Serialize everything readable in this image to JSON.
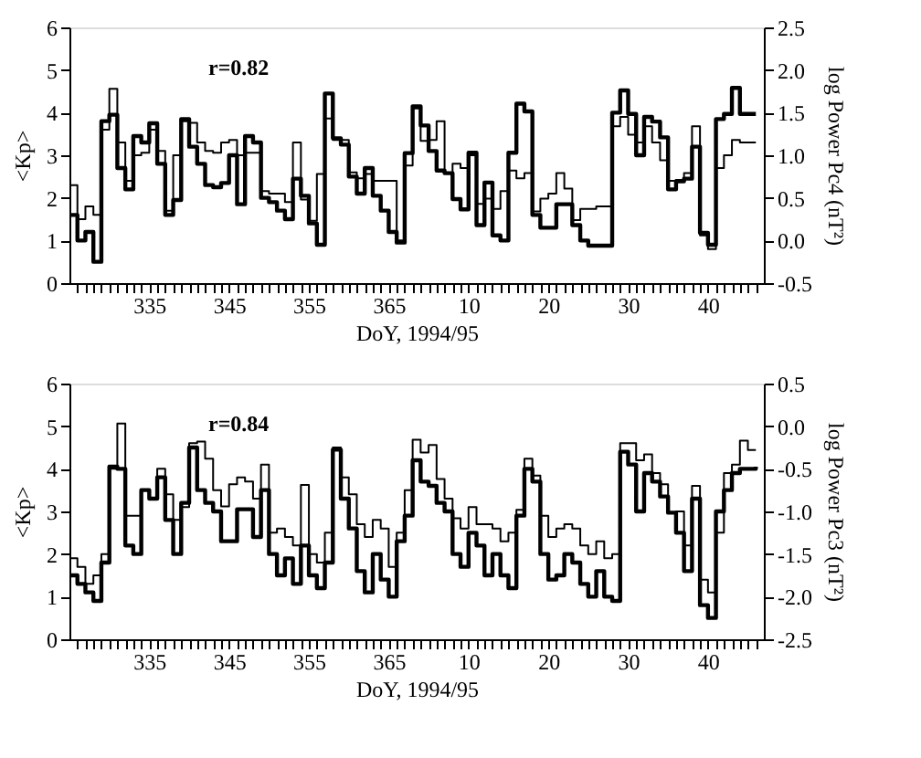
{
  "chart_data": [
    {
      "type": "step",
      "xlabel": "DoY, 1994/95",
      "ylabel": "<Kp>",
      "y2label": "log Power Pc4 (nT²)",
      "annotations": [
        "r=0.82"
      ],
      "grid": false,
      "x": [
        "1994-11-21",
        "1994-11-22",
        "1994-11-23",
        "1994-11-24",
        "1994-11-25",
        "1994-11-26",
        "1994-11-27",
        "1994-11-28",
        "1994-11-29",
        "1994-11-30",
        "1994-12-01",
        "1994-12-02",
        "1994-12-03",
        "1994-12-04",
        "1994-12-05",
        "1994-12-06",
        "1994-12-07",
        "1994-12-08",
        "1994-12-09",
        "1994-12-10",
        "1994-12-11",
        "1994-12-12",
        "1994-12-13",
        "1994-12-14",
        "1994-12-15",
        "1994-12-16",
        "1994-12-17",
        "1994-12-18",
        "1994-12-19",
        "1994-12-20",
        "1994-12-21",
        "1994-12-22",
        "1994-12-23",
        "1994-12-24",
        "1994-12-25",
        "1994-12-26",
        "1994-12-27",
        "1994-12-28",
        "1994-12-29",
        "1994-12-30",
        "1994-12-31",
        "1995-01-01",
        "1995-01-02",
        "1995-01-03",
        "1995-01-04",
        "1995-01-05",
        "1995-01-06",
        "1995-01-07",
        "1995-01-08",
        "1995-01-09",
        "1995-01-10",
        "1995-01-11",
        "1995-01-12",
        "1995-01-13",
        "1995-01-14",
        "1995-01-15",
        "1995-01-16",
        "1995-01-17",
        "1995-01-18",
        "1995-01-19",
        "1995-01-20",
        "1995-01-21",
        "1995-01-22",
        "1995-01-23",
        "1995-01-24",
        "1995-01-25",
        "1995-01-26",
        "1995-01-27",
        "1995-01-28",
        "1995-01-29",
        "1995-01-30",
        "1995-01-31",
        "1995-02-01",
        "1995-02-02",
        "1995-02-03",
        "1995-02-04",
        "1995-02-05",
        "1995-02-06",
        "1995-02-07",
        "1995-02-08",
        "1995-02-09",
        "1995-02-10",
        "1995-02-11",
        "1995-02-12",
        "1995-02-13",
        "1995-02-14",
        "1995-02-15"
      ],
      "xlim": [
        "1994-11-21",
        "1995-02-16"
      ],
      "xticks": [
        {
          "value": "1994-11-22",
          "label": null
        },
        {
          "value": "1994-11-23",
          "label": null
        },
        {
          "value": "1994-11-24",
          "label": null
        },
        {
          "value": "1994-11-25",
          "label": null
        },
        {
          "value": "1994-11-26",
          "label": null
        },
        {
          "value": "1994-11-27",
          "label": null
        },
        {
          "value": "1994-11-28",
          "label": null
        },
        {
          "value": "1994-11-29",
          "label": null
        },
        {
          "value": "1994-11-30",
          "label": null
        },
        {
          "value": "1994-12-01",
          "label": "335"
        },
        {
          "value": "1994-12-02",
          "label": null
        },
        {
          "value": "1994-12-03",
          "label": null
        },
        {
          "value": "1994-12-04",
          "label": null
        },
        {
          "value": "1994-12-05",
          "label": null
        },
        {
          "value": "1994-12-06",
          "label": null
        },
        {
          "value": "1994-12-07",
          "label": null
        },
        {
          "value": "1994-12-08",
          "label": null
        },
        {
          "value": "1994-12-09",
          "label": null
        },
        {
          "value": "1994-12-10",
          "label": null
        },
        {
          "value": "1994-12-11",
          "label": "345"
        },
        {
          "value": "1994-12-12",
          "label": null
        },
        {
          "value": "1994-12-13",
          "label": null
        },
        {
          "value": "1994-12-14",
          "label": null
        },
        {
          "value": "1994-12-15",
          "label": null
        },
        {
          "value": "1994-12-16",
          "label": null
        },
        {
          "value": "1994-12-17",
          "label": null
        },
        {
          "value": "1994-12-18",
          "label": null
        },
        {
          "value": "1994-12-19",
          "label": null
        },
        {
          "value": "1994-12-20",
          "label": null
        },
        {
          "value": "1994-12-21",
          "label": "355"
        },
        {
          "value": "1994-12-22",
          "label": null
        },
        {
          "value": "1994-12-23",
          "label": null
        },
        {
          "value": "1994-12-24",
          "label": null
        },
        {
          "value": "1994-12-25",
          "label": null
        },
        {
          "value": "1994-12-26",
          "label": null
        },
        {
          "value": "1994-12-27",
          "label": null
        },
        {
          "value": "1994-12-28",
          "label": null
        },
        {
          "value": "1994-12-29",
          "label": null
        },
        {
          "value": "1994-12-30",
          "label": null
        },
        {
          "value": "1994-12-31",
          "label": "365"
        },
        {
          "value": "1995-01-01",
          "label": null
        },
        {
          "value": "1995-01-02",
          "label": null
        },
        {
          "value": "1995-01-03",
          "label": null
        },
        {
          "value": "1995-01-04",
          "label": null
        },
        {
          "value": "1995-01-05",
          "label": null
        },
        {
          "value": "1995-01-06",
          "label": null
        },
        {
          "value": "1995-01-07",
          "label": null
        },
        {
          "value": "1995-01-08",
          "label": null
        },
        {
          "value": "1995-01-09",
          "label": null
        },
        {
          "value": "1995-01-10",
          "label": "10"
        },
        {
          "value": "1995-01-11",
          "label": null
        },
        {
          "value": "1995-01-12",
          "label": null
        },
        {
          "value": "1995-01-13",
          "label": null
        },
        {
          "value": "1995-01-14",
          "label": null
        },
        {
          "value": "1995-01-15",
          "label": null
        },
        {
          "value": "1995-01-16",
          "label": null
        },
        {
          "value": "1995-01-17",
          "label": null
        },
        {
          "value": "1995-01-18",
          "label": null
        },
        {
          "value": "1995-01-19",
          "label": null
        },
        {
          "value": "1995-01-20",
          "label": "20"
        },
        {
          "value": "1995-01-21",
          "label": null
        },
        {
          "value": "1995-01-22",
          "label": null
        },
        {
          "value": "1995-01-23",
          "label": null
        },
        {
          "value": "1995-01-24",
          "label": null
        },
        {
          "value": "1995-01-25",
          "label": null
        },
        {
          "value": "1995-01-26",
          "label": null
        },
        {
          "value": "1995-01-27",
          "label": null
        },
        {
          "value": "1995-01-28",
          "label": null
        },
        {
          "value": "1995-01-29",
          "label": null
        },
        {
          "value": "1995-01-30",
          "label": "30"
        },
        {
          "value": "1995-01-31",
          "label": null
        },
        {
          "value": "1995-02-01",
          "label": null
        },
        {
          "value": "1995-02-02",
          "label": null
        },
        {
          "value": "1995-02-03",
          "label": null
        },
        {
          "value": "1995-02-04",
          "label": null
        },
        {
          "value": "1995-02-05",
          "label": null
        },
        {
          "value": "1995-02-06",
          "label": null
        },
        {
          "value": "1995-02-07",
          "label": null
        },
        {
          "value": "1995-02-08",
          "label": null
        },
        {
          "value": "1995-02-09",
          "label": "40"
        },
        {
          "value": "1995-02-10",
          "label": null
        },
        {
          "value": "1995-02-11",
          "label": null
        },
        {
          "value": "1995-02-12",
          "label": null
        },
        {
          "value": "1995-02-13",
          "label": null
        },
        {
          "value": "1995-02-14",
          "label": null
        },
        {
          "value": "1995-02-15",
          "label": null
        }
      ],
      "ylim": [
        0,
        6
      ],
      "yticks": [
        0,
        1,
        2,
        3,
        4,
        5,
        6
      ],
      "y2lim": [
        -0.5,
        2.5
      ],
      "y2ticks": [
        {
          "value": -0.5,
          "label": "-0.5"
        },
        {
          "value": 0,
          "label": "0.0"
        },
        {
          "value": 0.5,
          "label": "0.5"
        },
        {
          "value": 1,
          "label": "1.0"
        },
        {
          "value": 1.5,
          "label": "1.5"
        },
        {
          "value": 2,
          "label": "2.0"
        },
        {
          "value": 2.5,
          "label": "2.5"
        }
      ],
      "series": [
        {
          "color": "#000000",
          "values": [
            1.6,
            1.0,
            1.2,
            0.5,
            3.8,
            3.95,
            2.7,
            2.2,
            3.45,
            3.3,
            3.75,
            2.8,
            1.6,
            1.95,
            3.85,
            3.2,
            2.8,
            2.3,
            2.25,
            2.35,
            3.0,
            1.85,
            3.45,
            3.3,
            2.0,
            1.9,
            1.7,
            1.5,
            2.45,
            2.05,
            1.4,
            0.9,
            4.45,
            3.4,
            3.25,
            2.5,
            2.1,
            2.7,
            2.05,
            1.7,
            1.2,
            0.95,
            3.05,
            4.15,
            3.7,
            3.1,
            2.64,
            2.58,
            1.97,
            1.73,
            3.06,
            1.36,
            2.36,
            1.12,
            1.0,
            3.06,
            4.21,
            4.03,
            1.6,
            1.3,
            1.3,
            1.85,
            1.85,
            1.36,
            1.0,
            0.88,
            0.88,
            0.88,
            4.0,
            4.52,
            3.97,
            3.0,
            3.9,
            3.79,
            3.42,
            2.2,
            2.39,
            2.45,
            3.2,
            1.18,
            0.9,
            3.85,
            3.97,
            4.58,
            3.97,
            3.97,
            3.97
          ]
        },
        {
          "color": "#000000",
          "axis": "y2",
          "values": [
            0.65,
            0.25,
            0.4,
            0.3,
            1.3,
            1.78,
            1.15,
            0.7,
            1.0,
            1.03,
            1.3,
            1.05,
            0.35,
            1.0,
            1.4,
            1.38,
            1.15,
            1.05,
            1.03,
            1.15,
            1.18,
            1.0,
            1.03,
            1.03,
            0.58,
            0.55,
            0.55,
            0.45,
            1.15,
            0.48,
            0.23,
            0.78,
            1.43,
            1.18,
            1.18,
            0.8,
            0.73,
            0.78,
            0.7,
            0.7,
            0.7,
            0.0,
            0.88,
            1.55,
            1.17,
            1.18,
            1.4,
            0.79,
            0.9,
            0.85,
            1.0,
            0.43,
            0.49,
            0.37,
            0.58,
            0.82,
            0.73,
            0.79,
            0.34,
            0.49,
            0.55,
            0.79,
            0.61,
            0.24,
            0.37,
            0.37,
            0.4,
            0.4,
            1.34,
            1.45,
            1.24,
            1.15,
            1.34,
            1.15,
            0.94,
            0.7,
            0.71,
            0.79,
            1.34,
            0.06,
            -0.1,
            0.85,
            1.0,
            1.18,
            1.15,
            1.15,
            1.15
          ]
        }
      ]
    },
    {
      "type": "step",
      "xlabel": "DoY, 1994/95",
      "ylabel": "<Kp>",
      "y2label": "log Power Pc3 (nT²)",
      "annotations": [
        "r=0.84"
      ],
      "grid": false,
      "x": [
        "1994-11-21",
        "1994-11-22",
        "1994-11-23",
        "1994-11-24",
        "1994-11-25",
        "1994-11-26",
        "1994-11-27",
        "1994-11-28",
        "1994-11-29",
        "1994-11-30",
        "1994-12-01",
        "1994-12-02",
        "1994-12-03",
        "1994-12-04",
        "1994-12-05",
        "1994-12-06",
        "1994-12-07",
        "1994-12-08",
        "1994-12-09",
        "1994-12-10",
        "1994-12-11",
        "1994-12-12",
        "1994-12-13",
        "1994-12-14",
        "1994-12-15",
        "1994-12-16",
        "1994-12-17",
        "1994-12-18",
        "1994-12-19",
        "1994-12-20",
        "1994-12-21",
        "1994-12-22",
        "1994-12-23",
        "1994-12-24",
        "1994-12-25",
        "1994-12-26",
        "1994-12-27",
        "1994-12-28",
        "1994-12-29",
        "1994-12-30",
        "1994-12-31",
        "1995-01-01",
        "1995-01-02",
        "1995-01-03",
        "1995-01-04",
        "1995-01-05",
        "1995-01-06",
        "1995-01-07",
        "1995-01-08",
        "1995-01-09",
        "1995-01-10",
        "1995-01-11",
        "1995-01-12",
        "1995-01-13",
        "1995-01-14",
        "1995-01-15",
        "1995-01-16",
        "1995-01-17",
        "1995-01-18",
        "1995-01-19",
        "1995-01-20",
        "1995-01-21",
        "1995-01-22",
        "1995-01-23",
        "1995-01-24",
        "1995-01-25",
        "1995-01-26",
        "1995-01-27",
        "1995-01-28",
        "1995-01-29",
        "1995-01-30",
        "1995-01-31",
        "1995-02-01",
        "1995-02-02",
        "1995-02-03",
        "1995-02-04",
        "1995-02-05",
        "1995-02-06",
        "1995-02-07",
        "1995-02-08",
        "1995-02-09",
        "1995-02-10",
        "1995-02-11",
        "1995-02-12",
        "1995-02-13",
        "1995-02-14",
        "1995-02-15"
      ],
      "xlim": [
        "1994-11-21",
        "1995-02-16"
      ],
      "xticks": [
        {
          "value": "1994-11-22",
          "label": null
        },
        {
          "value": "1994-11-23",
          "label": null
        },
        {
          "value": "1994-11-24",
          "label": null
        },
        {
          "value": "1994-11-25",
          "label": null
        },
        {
          "value": "1994-11-26",
          "label": null
        },
        {
          "value": "1994-11-27",
          "label": null
        },
        {
          "value": "1994-11-28",
          "label": null
        },
        {
          "value": "1994-11-29",
          "label": null
        },
        {
          "value": "1994-11-30",
          "label": null
        },
        {
          "value": "1994-12-01",
          "label": "335"
        },
        {
          "value": "1994-12-02",
          "label": null
        },
        {
          "value": "1994-12-03",
          "label": null
        },
        {
          "value": "1994-12-04",
          "label": null
        },
        {
          "value": "1994-12-05",
          "label": null
        },
        {
          "value": "1994-12-06",
          "label": null
        },
        {
          "value": "1994-12-07",
          "label": null
        },
        {
          "value": "1994-12-08",
          "label": null
        },
        {
          "value": "1994-12-09",
          "label": null
        },
        {
          "value": "1994-12-10",
          "label": null
        },
        {
          "value": "1994-12-11",
          "label": "345"
        },
        {
          "value": "1994-12-12",
          "label": null
        },
        {
          "value": "1994-12-13",
          "label": null
        },
        {
          "value": "1994-12-14",
          "label": null
        },
        {
          "value": "1994-12-15",
          "label": null
        },
        {
          "value": "1994-12-16",
          "label": null
        },
        {
          "value": "1994-12-17",
          "label": null
        },
        {
          "value": "1994-12-18",
          "label": null
        },
        {
          "value": "1994-12-19",
          "label": null
        },
        {
          "value": "1994-12-20",
          "label": null
        },
        {
          "value": "1994-12-21",
          "label": "355"
        },
        {
          "value": "1994-12-22",
          "label": null
        },
        {
          "value": "1994-12-23",
          "label": null
        },
        {
          "value": "1994-12-24",
          "label": null
        },
        {
          "value": "1994-12-25",
          "label": null
        },
        {
          "value": "1994-12-26",
          "label": null
        },
        {
          "value": "1994-12-27",
          "label": null
        },
        {
          "value": "1994-12-28",
          "label": null
        },
        {
          "value": "1994-12-29",
          "label": null
        },
        {
          "value": "1994-12-30",
          "label": null
        },
        {
          "value": "1994-12-31",
          "label": "365"
        },
        {
          "value": "1995-01-01",
          "label": null
        },
        {
          "value": "1995-01-02",
          "label": null
        },
        {
          "value": "1995-01-03",
          "label": null
        },
        {
          "value": "1995-01-04",
          "label": null
        },
        {
          "value": "1995-01-05",
          "label": null
        },
        {
          "value": "1995-01-06",
          "label": null
        },
        {
          "value": "1995-01-07",
          "label": null
        },
        {
          "value": "1995-01-08",
          "label": null
        },
        {
          "value": "1995-01-09",
          "label": null
        },
        {
          "value": "1995-01-10",
          "label": "10"
        },
        {
          "value": "1995-01-11",
          "label": null
        },
        {
          "value": "1995-01-12",
          "label": null
        },
        {
          "value": "1995-01-13",
          "label": null
        },
        {
          "value": "1995-01-14",
          "label": null
        },
        {
          "value": "1995-01-15",
          "label": null
        },
        {
          "value": "1995-01-16",
          "label": null
        },
        {
          "value": "1995-01-17",
          "label": null
        },
        {
          "value": "1995-01-18",
          "label": null
        },
        {
          "value": "1995-01-19",
          "label": null
        },
        {
          "value": "1995-01-20",
          "label": "20"
        },
        {
          "value": "1995-01-21",
          "label": null
        },
        {
          "value": "1995-01-22",
          "label": null
        },
        {
          "value": "1995-01-23",
          "label": null
        },
        {
          "value": "1995-01-24",
          "label": null
        },
        {
          "value": "1995-01-25",
          "label": null
        },
        {
          "value": "1995-01-26",
          "label": null
        },
        {
          "value": "1995-01-27",
          "label": null
        },
        {
          "value": "1995-01-28",
          "label": null
        },
        {
          "value": "1995-01-29",
          "label": null
        },
        {
          "value": "1995-01-30",
          "label": "30"
        },
        {
          "value": "1995-01-31",
          "label": null
        },
        {
          "value": "1995-02-01",
          "label": null
        },
        {
          "value": "1995-02-02",
          "label": null
        },
        {
          "value": "1995-02-03",
          "label": null
        },
        {
          "value": "1995-02-04",
          "label": null
        },
        {
          "value": "1995-02-05",
          "label": null
        },
        {
          "value": "1995-02-06",
          "label": null
        },
        {
          "value": "1995-02-07",
          "label": null
        },
        {
          "value": "1995-02-08",
          "label": null
        },
        {
          "value": "1995-02-09",
          "label": "40"
        },
        {
          "value": "1995-02-10",
          "label": null
        },
        {
          "value": "1995-02-11",
          "label": null
        },
        {
          "value": "1995-02-12",
          "label": null
        },
        {
          "value": "1995-02-13",
          "label": null
        },
        {
          "value": "1995-02-14",
          "label": null
        },
        {
          "value": "1995-02-15",
          "label": null
        }
      ],
      "ylim": [
        0,
        6
      ],
      "yticks": [
        0,
        1,
        2,
        3,
        4,
        5,
        6
      ],
      "y2lim": [
        -2.5,
        0.5
      ],
      "y2ticks": [
        {
          "value": -2.5,
          "label": "-2.5"
        },
        {
          "value": -2,
          "label": "-2.0"
        },
        {
          "value": -1.5,
          "label": "-1.5"
        },
        {
          "value": -1,
          "label": "-1.0"
        },
        {
          "value": -0.5,
          "label": "-0.5"
        },
        {
          "value": 0,
          "label": "0.0"
        },
        {
          "value": 0.5,
          "label": "0.5"
        }
      ],
      "series": [
        {
          "color": "#000000",
          "values": [
            1.5,
            1.3,
            1.1,
            0.9,
            1.8,
            4.05,
            4.0,
            2.2,
            2.0,
            3.5,
            3.3,
            3.8,
            2.8,
            2.0,
            3.2,
            4.5,
            3.5,
            3.2,
            3.0,
            2.3,
            2.3,
            3.05,
            3.05,
            2.4,
            3.5,
            2.0,
            1.5,
            1.9,
            1.3,
            2.2,
            1.5,
            1.2,
            1.8,
            4.45,
            3.3,
            2.6,
            1.6,
            1.1,
            2.0,
            1.4,
            1.0,
            2.3,
            2.9,
            4.2,
            3.7,
            3.6,
            3.2,
            3.0,
            2.0,
            1.7,
            2.5,
            2.2,
            1.5,
            2.0,
            1.5,
            1.2,
            2.9,
            4.0,
            3.7,
            2.0,
            1.4,
            1.5,
            2.0,
            1.8,
            1.3,
            1.0,
            1.6,
            1.0,
            0.9,
            4.4,
            4.1,
            3.0,
            3.9,
            3.7,
            3.35,
            2.97,
            2.5,
            1.6,
            3.3,
            0.8,
            0.5,
            3.0,
            3.5,
            3.9,
            4.0,
            4.0,
            4.05
          ]
        },
        {
          "color": "#000000",
          "axis": "y2",
          "values": [
            -1.55,
            -1.65,
            -1.85,
            -1.75,
            -1.5,
            -0.5,
            0.03,
            -1.05,
            -1.05,
            -0.75,
            -0.85,
            -0.5,
            -0.8,
            -1.1,
            -0.95,
            -0.2,
            -0.18,
            -0.38,
            -0.75,
            -0.94,
            -0.68,
            -0.6,
            -0.65,
            -0.85,
            -0.45,
            -1.25,
            -1.2,
            -1.3,
            -1.4,
            -0.69,
            -1.5,
            -1.6,
            -1.25,
            -0.25,
            -0.6,
            -0.8,
            -1.15,
            -1.3,
            -1.1,
            -1.2,
            -1.65,
            -1.25,
            -0.75,
            -0.16,
            -0.31,
            -0.22,
            -0.62,
            -0.85,
            -1.08,
            -1.2,
            -0.95,
            -1.15,
            -1.15,
            -1.2,
            -1.35,
            -1.25,
            -0.98,
            -0.38,
            -0.58,
            -1.05,
            -1.3,
            -1.2,
            -1.15,
            -1.2,
            -1.4,
            -1.5,
            -1.35,
            -1.55,
            -1.5,
            -0.2,
            -0.2,
            -0.4,
            -0.33,
            -0.55,
            -0.68,
            -1.02,
            -1.0,
            -1.4,
            -0.7,
            -1.8,
            -1.95,
            -1.25,
            -0.55,
            -0.45,
            -0.17,
            -0.28,
            -0.28
          ]
        }
      ]
    }
  ]
}
